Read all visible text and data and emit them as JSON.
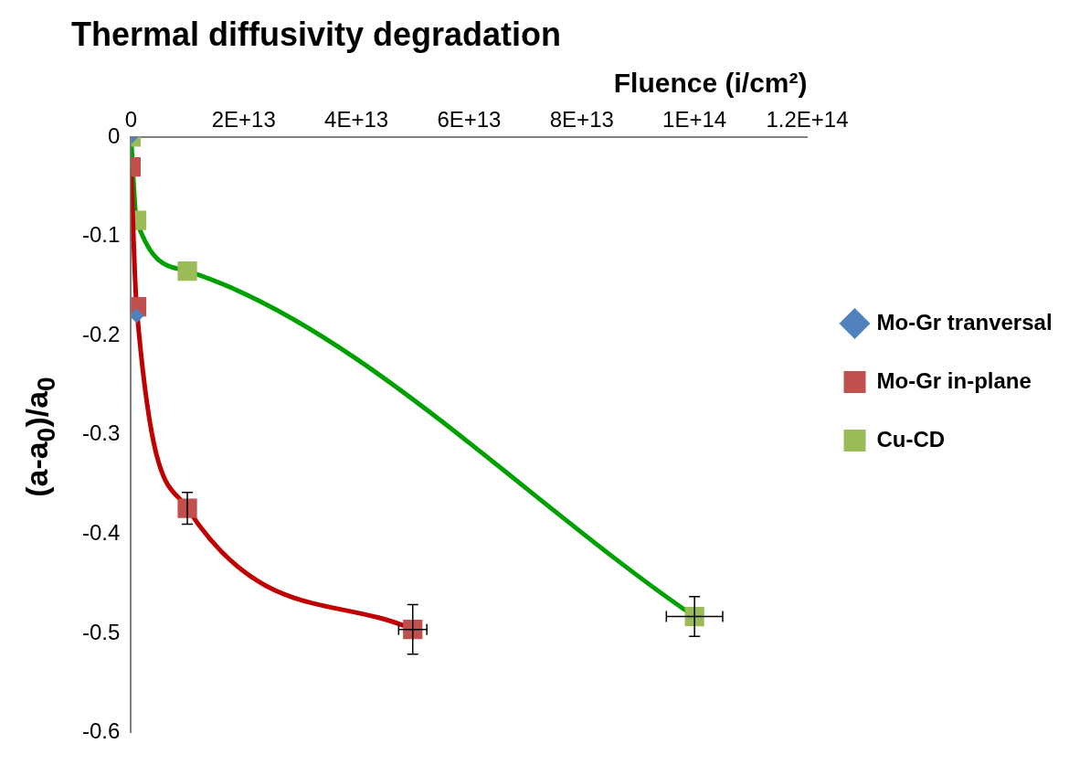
{
  "chart_data": {
    "type": "line",
    "title": "Thermal diffusivity degradation",
    "xlabel": "Fluence (i/cm²)",
    "ylabel": "(a-a$_{0}$)/a$_{0}$",
    "xlim": [
      0,
      120000000000000.0
    ],
    "xticks": [
      0,
      {
        "value": 20000000000000.0,
        "label": "2E+13"
      },
      {
        "value": 40000000000000.0,
        "label": "4E+13"
      },
      {
        "value": 60000000000000.0,
        "label": "6E+13"
      },
      {
        "value": 80000000000000.0,
        "label": "8E+13"
      },
      {
        "value": 100000000000000.0,
        "label": "1E+14"
      },
      {
        "value": 120000000000000.0,
        "label": "1.2E+14"
      }
    ],
    "ylim": [
      -0.6,
      0
    ],
    "yticks": [
      0,
      -0.1,
      -0.2,
      -0.3,
      -0.4,
      -0.5,
      -0.6
    ],
    "grid": false,
    "legend": "right",
    "series": [
      {
        "name": "Mo-Gr tranversal",
        "type": "scatter",
        "marker": "diamond",
        "color": "#4f81bd",
        "x": [
          0,
          1000000000000.0
        ],
        "values": [
          0,
          -0.18
        ]
      },
      {
        "name": "Mo-Gr in-plane",
        "type": "line",
        "marker": "square",
        "color": "#c00000",
        "x": [
          0,
          1000000000000.0,
          10000000000000.0,
          50000000000000.0
        ],
        "values": [
          -0.03,
          -0.171,
          -0.374,
          -0.496
        ],
        "errors": [
          null,
          null,
          0.016,
          0.025
        ],
        "xerrors": [
          null,
          null,
          null,
          2500000000000.0
        ]
      },
      {
        "name": "Cu-CD",
        "type": "line",
        "marker": "square",
        "color": "#00a000",
        "x": [
          0,
          1000000000000.0,
          10000000000000.0,
          100000000000000.0
        ],
        "values": [
          0,
          -0.084,
          -0.135,
          -0.483
        ],
        "errors": [
          null,
          null,
          null,
          0.02
        ],
        "xerrors": [
          null,
          null,
          null,
          5000000000000.0
        ]
      }
    ]
  }
}
